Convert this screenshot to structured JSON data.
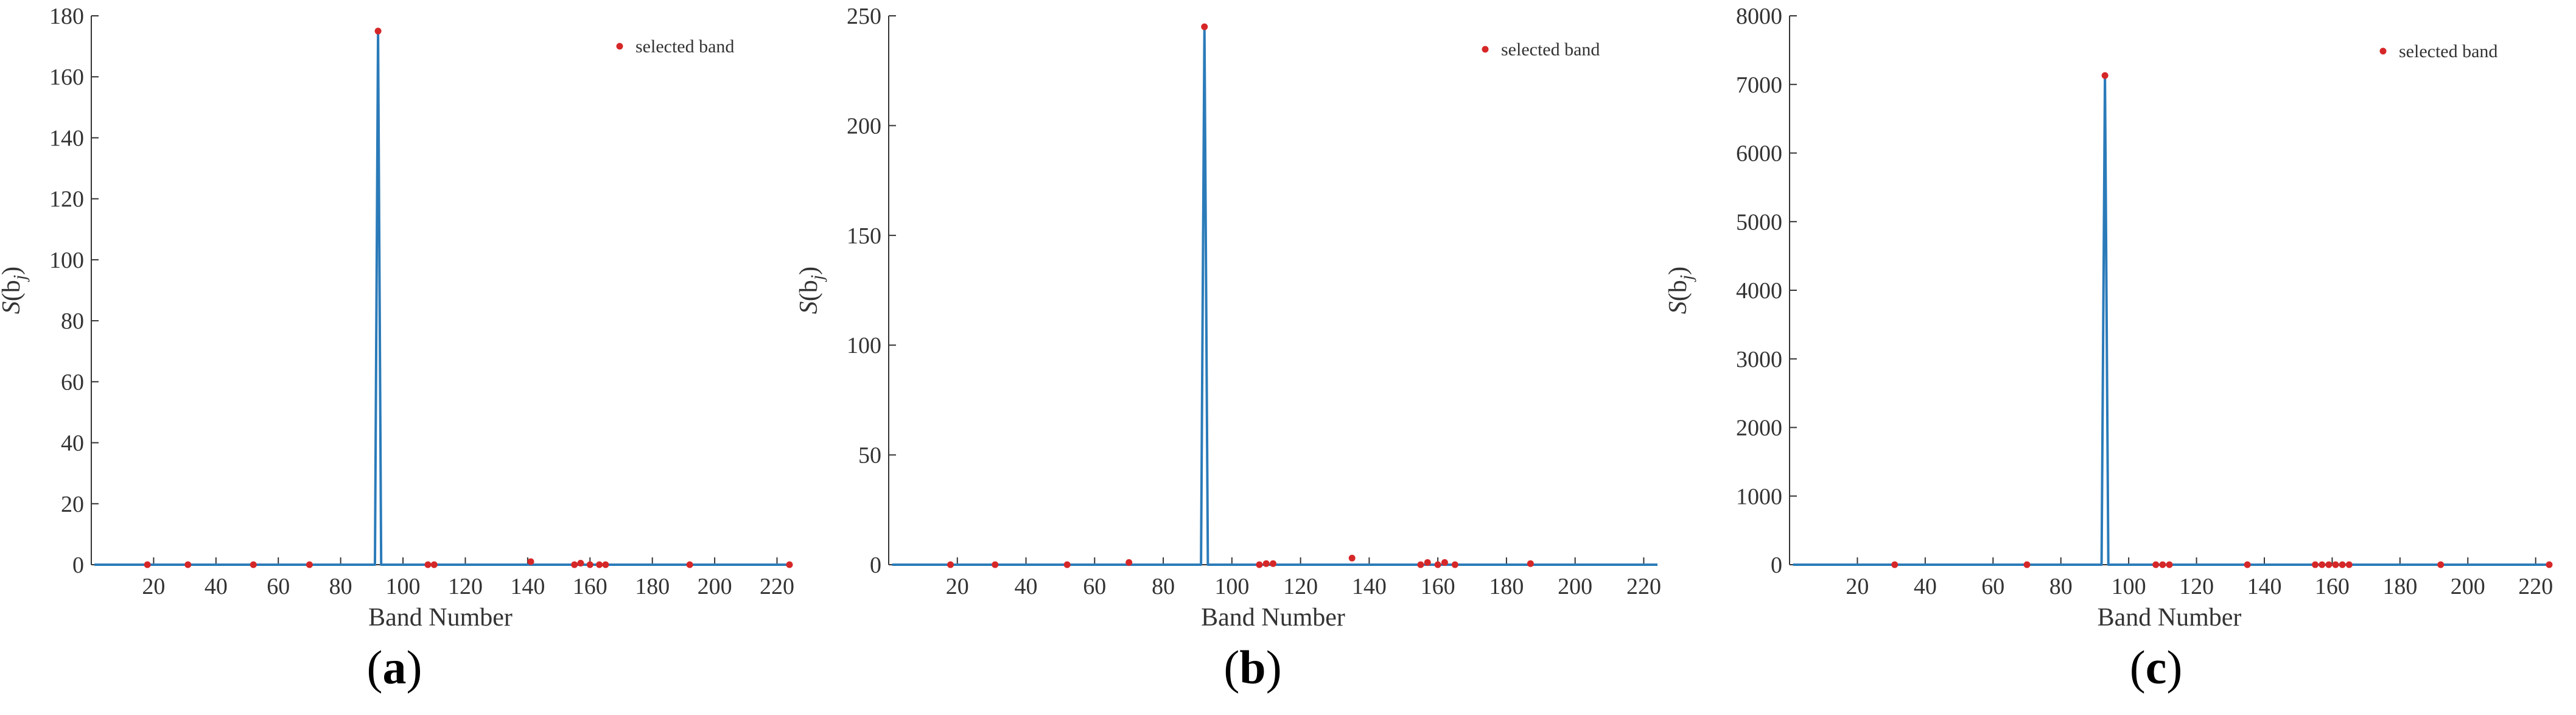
{
  "colors": {
    "line": "#2b7bb9",
    "marker": "#d62728",
    "axis": "#333333"
  },
  "chart_data": [
    {
      "type": "line",
      "caption": "(a)",
      "caption_letter": "a",
      "xlabel": "Band Number",
      "ylabel": "S(b_j)",
      "xlim": [
        0,
        224
      ],
      "ylim": [
        0,
        180
      ],
      "xticks": [
        20,
        40,
        60,
        80,
        100,
        120,
        140,
        160,
        180,
        200,
        220
      ],
      "yticks": [
        0,
        20,
        40,
        60,
        80,
        100,
        120,
        140,
        160,
        180
      ],
      "legend": {
        "label": "selected band",
        "position": "top-right"
      },
      "series": [
        {
          "x": [
            1,
            91,
            92,
            93,
            224
          ],
          "y": [
            0,
            0,
            175,
            0,
            0
          ]
        }
      ],
      "points": [
        {
          "x": 18,
          "y": 0
        },
        {
          "x": 31,
          "y": 0
        },
        {
          "x": 52,
          "y": 0
        },
        {
          "x": 70,
          "y": 0
        },
        {
          "x": 92,
          "y": 175
        },
        {
          "x": 108,
          "y": 0
        },
        {
          "x": 110,
          "y": 0
        },
        {
          "x": 141,
          "y": 1
        },
        {
          "x": 155,
          "y": 0
        },
        {
          "x": 157,
          "y": 0.5
        },
        {
          "x": 160,
          "y": 0
        },
        {
          "x": 163,
          "y": 0
        },
        {
          "x": 165,
          "y": 0
        },
        {
          "x": 192,
          "y": 0
        },
        {
          "x": 224,
          "y": 0
        }
      ]
    },
    {
      "type": "line",
      "caption": "(b)",
      "caption_letter": "b",
      "xlabel": "Band Number",
      "ylabel": "S(b_j)",
      "xlim": [
        0,
        224
      ],
      "ylim": [
        0,
        250
      ],
      "xticks": [
        20,
        40,
        60,
        80,
        100,
        120,
        140,
        160,
        180,
        200,
        220
      ],
      "yticks": [
        0,
        50,
        100,
        150,
        200,
        250
      ],
      "legend": {
        "label": "selected band",
        "position": "top-right"
      },
      "series": [
        {
          "x": [
            1,
            91,
            92,
            93,
            224
          ],
          "y": [
            0,
            0,
            245,
            0,
            0
          ]
        }
      ],
      "points": [
        {
          "x": 18,
          "y": 0
        },
        {
          "x": 31,
          "y": 0
        },
        {
          "x": 52,
          "y": 0
        },
        {
          "x": 70,
          "y": 1
        },
        {
          "x": 92,
          "y": 245
        },
        {
          "x": 108,
          "y": 0
        },
        {
          "x": 110,
          "y": 0.5
        },
        {
          "x": 112,
          "y": 0.5
        },
        {
          "x": 135,
          "y": 3
        },
        {
          "x": 155,
          "y": 0
        },
        {
          "x": 157,
          "y": 1
        },
        {
          "x": 160,
          "y": 0
        },
        {
          "x": 162,
          "y": 1
        },
        {
          "x": 165,
          "y": 0
        },
        {
          "x": 187,
          "y": 0.5
        }
      ]
    },
    {
      "type": "line",
      "caption": "(c)",
      "caption_letter": "c",
      "xlabel": "Band Number",
      "ylabel": "S(b_j)",
      "xlim": [
        0,
        224
      ],
      "ylim": [
        0,
        8000
      ],
      "xticks": [
        20,
        40,
        60,
        80,
        100,
        120,
        140,
        160,
        180,
        200,
        220
      ],
      "yticks": [
        0,
        1000,
        2000,
        3000,
        4000,
        5000,
        6000,
        7000,
        8000
      ],
      "legend": {
        "label": "selected band",
        "position": "top-right"
      },
      "series": [
        {
          "x": [
            1,
            92,
            93,
            94,
            224
          ],
          "y": [
            0,
            0,
            7130,
            0,
            0
          ]
        }
      ],
      "points": [
        {
          "x": 31,
          "y": 0
        },
        {
          "x": 70,
          "y": 0
        },
        {
          "x": 93,
          "y": 7130
        },
        {
          "x": 108,
          "y": 0
        },
        {
          "x": 110,
          "y": 0
        },
        {
          "x": 112,
          "y": 0
        },
        {
          "x": 135,
          "y": 0
        },
        {
          "x": 155,
          "y": 0
        },
        {
          "x": 157,
          "y": 0
        },
        {
          "x": 159,
          "y": 0
        },
        {
          "x": 161,
          "y": 0
        },
        {
          "x": 163,
          "y": 0
        },
        {
          "x": 165,
          "y": 0
        },
        {
          "x": 192,
          "y": 0
        },
        {
          "x": 224,
          "y": 0
        }
      ]
    }
  ]
}
